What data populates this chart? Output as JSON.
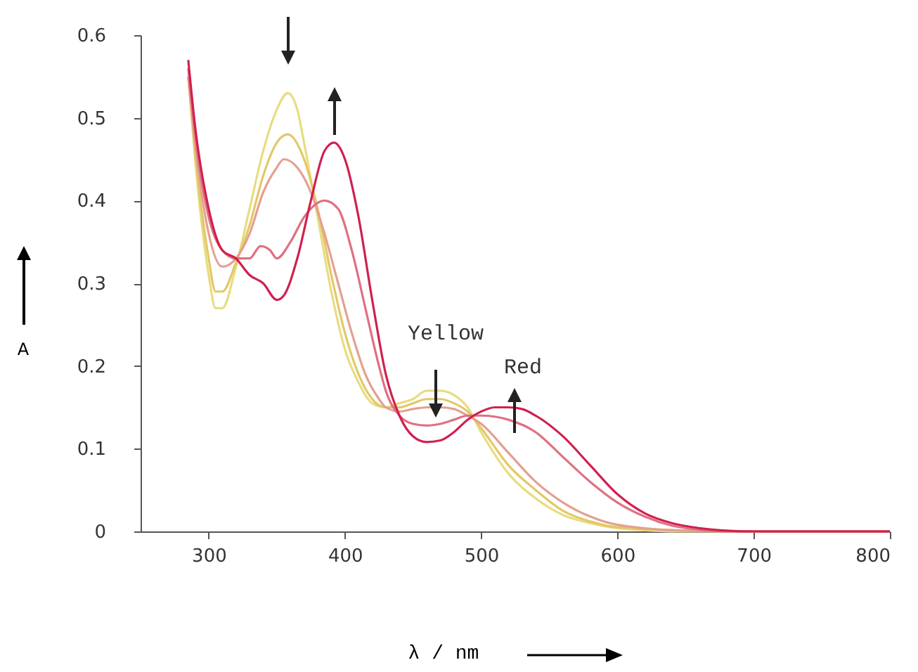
{
  "chart_data": {
    "type": "line",
    "xlabel": "λ / nm",
    "ylabel": "A",
    "xlim": [
      250,
      800
    ],
    "xticks": [
      300,
      400,
      500,
      600,
      700,
      800
    ],
    "ylim": [
      0,
      0.6
    ],
    "yticks": [
      0,
      0.1,
      0.2,
      0.3,
      0.4,
      0.5,
      0.6
    ],
    "grid": false,
    "marker": "none",
    "line_style": "solid",
    "series": [
      {
        "color": "#e8dc80",
        "x": [
          285,
          290,
          300,
          305,
          310,
          320,
          330,
          340,
          350,
          358,
          365,
          370,
          380,
          390,
          400,
          410,
          420,
          430,
          440,
          450,
          460,
          470,
          480,
          490,
          500,
          520,
          540,
          560,
          580,
          600,
          650,
          700,
          800
        ],
        "values": [
          0.55,
          0.45,
          0.31,
          0.27,
          0.27,
          0.32,
          0.39,
          0.46,
          0.51,
          0.53,
          0.51,
          0.47,
          0.38,
          0.29,
          0.22,
          0.18,
          0.155,
          0.15,
          0.155,
          0.16,
          0.17,
          0.17,
          0.165,
          0.15,
          0.12,
          0.07,
          0.04,
          0.02,
          0.01,
          0.004,
          0,
          0,
          0
        ]
      },
      {
        "color": "#e2c868",
        "x": [
          285,
          290,
          300,
          305,
          310,
          320,
          330,
          340,
          350,
          358,
          370,
          380,
          390,
          400,
          410,
          420,
          430,
          440,
          450,
          460,
          470,
          480,
          490,
          500,
          520,
          540,
          560,
          580,
          600,
          650,
          700,
          800
        ],
        "values": [
          0.55,
          0.46,
          0.33,
          0.29,
          0.29,
          0.325,
          0.37,
          0.43,
          0.47,
          0.48,
          0.45,
          0.39,
          0.31,
          0.24,
          0.19,
          0.16,
          0.15,
          0.15,
          0.155,
          0.16,
          0.16,
          0.155,
          0.145,
          0.125,
          0.08,
          0.05,
          0.025,
          0.012,
          0.005,
          0.001,
          0,
          0
        ]
      },
      {
        "color": "#e4a090",
        "x": [
          285,
          290,
          300,
          310,
          320,
          330,
          340,
          350,
          355,
          365,
          375,
          385,
          395,
          405,
          415,
          425,
          430,
          440,
          450,
          460,
          470,
          480,
          490,
          500,
          520,
          540,
          560,
          580,
          600,
          650,
          700,
          800
        ],
        "values": [
          0.55,
          0.47,
          0.36,
          0.32,
          0.33,
          0.36,
          0.41,
          0.44,
          0.45,
          0.44,
          0.41,
          0.36,
          0.3,
          0.24,
          0.19,
          0.16,
          0.15,
          0.145,
          0.148,
          0.15,
          0.15,
          0.148,
          0.14,
          0.13,
          0.095,
          0.06,
          0.035,
          0.018,
          0.008,
          0.001,
          0,
          0
        ]
      },
      {
        "color": "#e07080",
        "x": [
          285,
          290,
          300,
          310,
          320,
          330,
          338,
          345,
          350,
          360,
          370,
          385,
          395,
          405,
          415,
          425,
          430,
          440,
          450,
          460,
          470,
          480,
          490,
          500,
          520,
          540,
          560,
          580,
          600,
          620,
          640,
          660,
          680,
          700,
          800
        ],
        "values": [
          0.56,
          0.48,
          0.38,
          0.34,
          0.33,
          0.33,
          0.345,
          0.34,
          0.33,
          0.35,
          0.38,
          0.4,
          0.39,
          0.34,
          0.27,
          0.2,
          0.17,
          0.14,
          0.13,
          0.128,
          0.13,
          0.135,
          0.14,
          0.14,
          0.135,
          0.12,
          0.09,
          0.06,
          0.035,
          0.018,
          0.007,
          0.002,
          0,
          0,
          0
        ]
      },
      {
        "color": "#d02050",
        "x": [
          285,
          290,
          300,
          310,
          320,
          330,
          340,
          350,
          355,
          365,
          375,
          385,
          392,
          400,
          410,
          420,
          430,
          440,
          450,
          460,
          470,
          480,
          490,
          500,
          510,
          520,
          530,
          540,
          560,
          580,
          600,
          620,
          640,
          660,
          680,
          700,
          800
        ],
        "values": [
          0.57,
          0.49,
          0.39,
          0.34,
          0.33,
          0.31,
          0.3,
          0.28,
          0.285,
          0.33,
          0.4,
          0.46,
          0.47,
          0.45,
          0.38,
          0.28,
          0.19,
          0.14,
          0.115,
          0.108,
          0.11,
          0.12,
          0.135,
          0.145,
          0.15,
          0.15,
          0.148,
          0.14,
          0.115,
          0.08,
          0.045,
          0.022,
          0.01,
          0.004,
          0.001,
          0,
          0
        ]
      }
    ],
    "annotations": [
      "Yellow",
      "Red"
    ]
  }
}
